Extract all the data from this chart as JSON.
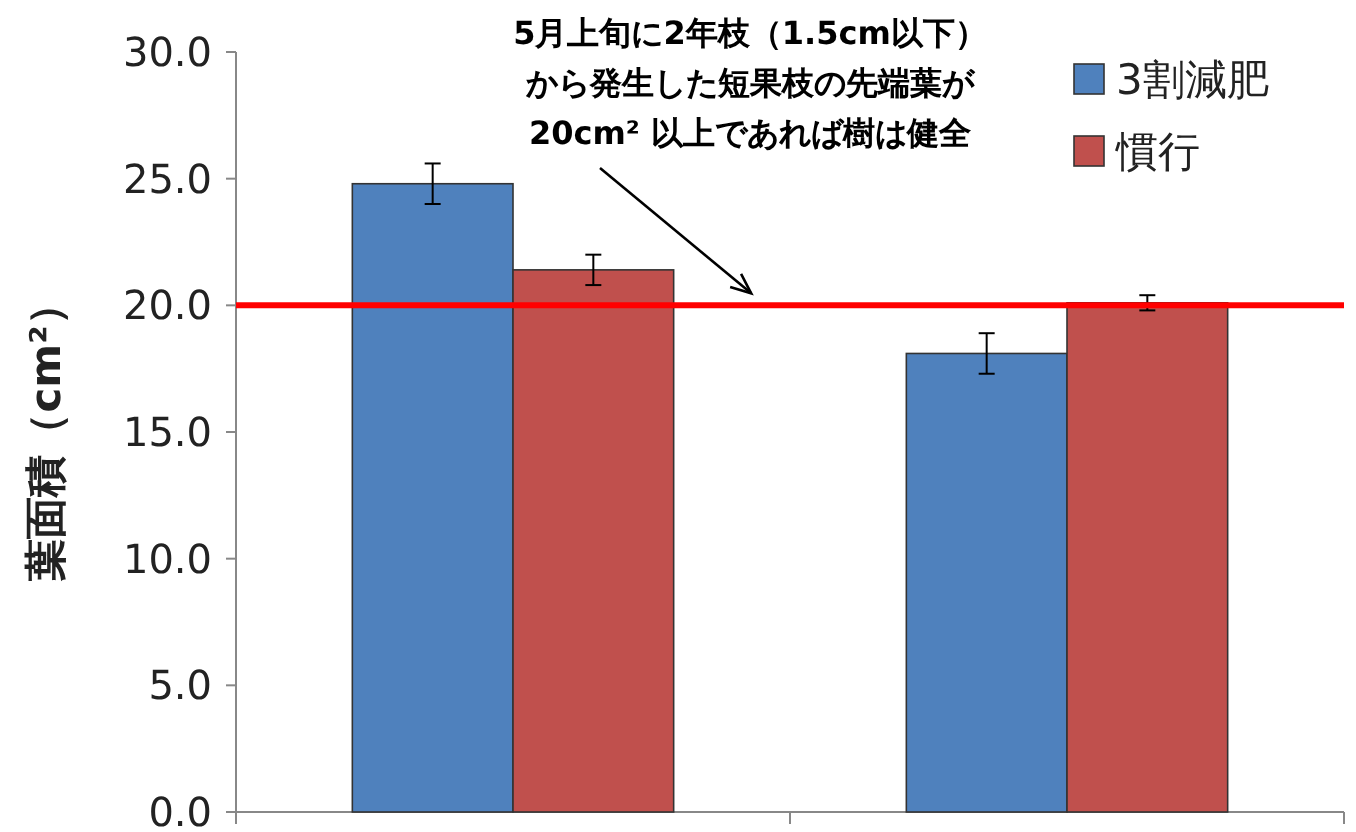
{
  "chart_data": {
    "type": "bar",
    "ylabel": "葉面積（cm²）",
    "categories": [
      null,
      null
    ],
    "series": [
      {
        "name": "3割減肥",
        "color": "#4f81bd",
        "values": [
          24.8,
          18.1
        ],
        "errors": [
          0.8,
          0.8
        ]
      },
      {
        "name": "慣行",
        "color": "#c0504d",
        "values": [
          21.4,
          20.1
        ],
        "errors": [
          0.6,
          0.3
        ]
      }
    ],
    "ylim": [
      0,
      30
    ],
    "yticks": [
      {
        "value": 0,
        "label": "0.0"
      },
      {
        "value": 5,
        "label": "5.0"
      },
      {
        "value": 10,
        "label": "10.0"
      },
      {
        "value": 15,
        "label": "15.0"
      },
      {
        "value": 20,
        "label": "20.0"
      },
      {
        "value": 25,
        "label": "25.0"
      },
      {
        "value": 30,
        "label": "30.0"
      }
    ],
    "ref_lines": [
      {
        "axis": "y",
        "value": 20,
        "color": "#ff0000",
        "line_style": "solid"
      }
    ],
    "annotations": [
      "5月上旬に2年枝（1.5cm以下）",
      "から発生した短果枝の先端葉が",
      "20cm² 以上であれば樹は健全"
    ],
    "legend": "top right",
    "grid": false
  }
}
